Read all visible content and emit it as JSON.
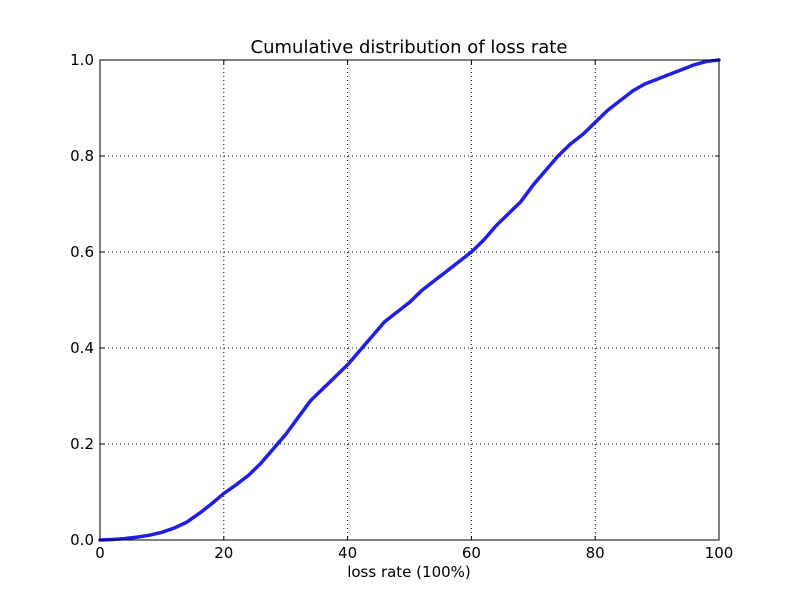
{
  "chart_data": {
    "type": "line",
    "title": "Cumulative distribution of loss rate",
    "xlabel": "loss rate (100%)",
    "ylabel": "",
    "xlim": [
      0,
      100
    ],
    "ylim": [
      0,
      1.0
    ],
    "grid": true,
    "x_ticks": [
      0,
      20,
      40,
      60,
      80,
      100
    ],
    "x_tick_labels": [
      "0",
      "20",
      "40",
      "60",
      "80",
      "100"
    ],
    "y_ticks": [
      0,
      0.2,
      0.4,
      0.6,
      0.8,
      1.0
    ],
    "y_tick_labels": [
      "0.0",
      "0.2",
      "0.4",
      "0.6",
      "0.8",
      "1.0"
    ],
    "colors": {
      "series": "#1f1fe6",
      "axes": "#000000",
      "grid": "#000000",
      "background": "#ffffff"
    },
    "series": [
      {
        "x": [
          0,
          2,
          4,
          6,
          8,
          10,
          12,
          14,
          16,
          18,
          20,
          22,
          24,
          26,
          28,
          30,
          32,
          34,
          36,
          38,
          40,
          42,
          44,
          46,
          48,
          50,
          52,
          54,
          56,
          58,
          60,
          62,
          64,
          66,
          68,
          70,
          72,
          74,
          76,
          78,
          80,
          82,
          84,
          86,
          88,
          90,
          92,
          94,
          96,
          98,
          100
        ],
        "values": [
          0.0,
          0.001,
          0.003,
          0.006,
          0.01,
          0.016,
          0.025,
          0.037,
          0.055,
          0.075,
          0.097,
          0.115,
          0.135,
          0.16,
          0.19,
          0.22,
          0.255,
          0.29,
          0.315,
          0.34,
          0.365,
          0.395,
          0.425,
          0.455,
          0.475,
          0.495,
          0.52,
          0.54,
          0.56,
          0.58,
          0.6,
          0.625,
          0.655,
          0.68,
          0.705,
          0.74,
          0.77,
          0.8,
          0.825,
          0.845,
          0.87,
          0.895,
          0.915,
          0.935,
          0.95,
          0.96,
          0.97,
          0.98,
          0.99,
          0.997,
          1.0
        ]
      }
    ]
  }
}
